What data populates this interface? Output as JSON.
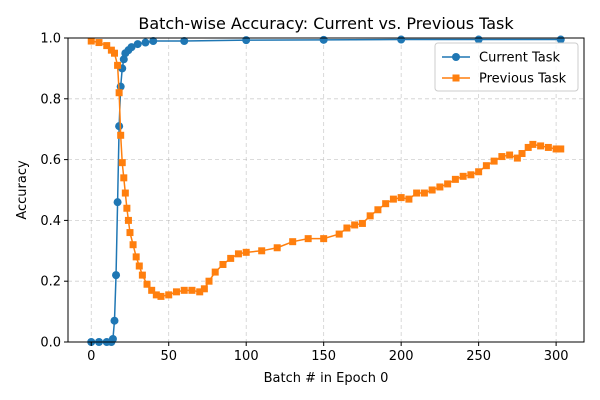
{
  "chart_data": {
    "type": "line",
    "title": "Batch-wise Accuracy: Current vs. Previous Task",
    "xlabel": "Batch # in Epoch 0",
    "ylabel": "Accuracy",
    "xlim": [
      -15,
      318
    ],
    "ylim": [
      0.0,
      1.0
    ],
    "xticks": [
      0,
      50,
      100,
      150,
      200,
      250,
      300
    ],
    "yticks": [
      0.0,
      0.2,
      0.4,
      0.6,
      0.8,
      1.0
    ],
    "xtick_labels": [
      "0",
      "50",
      "100",
      "150",
      "200",
      "250",
      "300"
    ],
    "ytick_labels": [
      "0.0",
      "0.2",
      "0.4",
      "0.6",
      "0.8",
      "1.0"
    ],
    "grid": true,
    "legend_position": "upper right",
    "series": [
      {
        "name": "Current Task",
        "color": "#1f77b4",
        "marker": "circle",
        "points": [
          [
            0,
            0.0
          ],
          [
            5,
            0.0
          ],
          [
            10,
            0.0
          ],
          [
            13,
            0.0
          ],
          [
            14,
            0.01
          ],
          [
            15,
            0.07
          ],
          [
            16,
            0.22
          ],
          [
            17,
            0.46
          ],
          [
            18,
            0.71
          ],
          [
            19,
            0.84
          ],
          [
            20,
            0.9
          ],
          [
            21,
            0.93
          ],
          [
            22,
            0.95
          ],
          [
            24,
            0.96
          ],
          [
            26,
            0.97
          ],
          [
            30,
            0.98
          ],
          [
            35,
            0.985
          ],
          [
            40,
            0.99
          ],
          [
            60,
            0.99
          ],
          [
            100,
            0.993
          ],
          [
            150,
            0.994
          ],
          [
            200,
            0.995
          ],
          [
            250,
            0.995
          ],
          [
            303,
            0.995
          ]
        ]
      },
      {
        "name": "Previous Task",
        "color": "#ff7f0e",
        "marker": "square",
        "points": [
          [
            0,
            0.99
          ],
          [
            5,
            0.985
          ],
          [
            10,
            0.975
          ],
          [
            13,
            0.96
          ],
          [
            15,
            0.95
          ],
          [
            17,
            0.91
          ],
          [
            18,
            0.82
          ],
          [
            19,
            0.68
          ],
          [
            20,
            0.59
          ],
          [
            21,
            0.54
          ],
          [
            22,
            0.49
          ],
          [
            23,
            0.44
          ],
          [
            24,
            0.4
          ],
          [
            25,
            0.36
          ],
          [
            27,
            0.32
          ],
          [
            29,
            0.28
          ],
          [
            31,
            0.25
          ],
          [
            33,
            0.22
          ],
          [
            36,
            0.19
          ],
          [
            39,
            0.17
          ],
          [
            42,
            0.155
          ],
          [
            45,
            0.15
          ],
          [
            50,
            0.155
          ],
          [
            55,
            0.165
          ],
          [
            60,
            0.17
          ],
          [
            65,
            0.17
          ],
          [
            70,
            0.165
          ],
          [
            73,
            0.175
          ],
          [
            76,
            0.2
          ],
          [
            80,
            0.23
          ],
          [
            85,
            0.255
          ],
          [
            90,
            0.275
          ],
          [
            95,
            0.29
          ],
          [
            100,
            0.295
          ],
          [
            110,
            0.3
          ],
          [
            120,
            0.31
          ],
          [
            130,
            0.33
          ],
          [
            140,
            0.34
          ],
          [
            150,
            0.34
          ],
          [
            160,
            0.355
          ],
          [
            165,
            0.375
          ],
          [
            170,
            0.385
          ],
          [
            175,
            0.39
          ],
          [
            180,
            0.415
          ],
          [
            185,
            0.435
          ],
          [
            190,
            0.455
          ],
          [
            195,
            0.47
          ],
          [
            200,
            0.475
          ],
          [
            205,
            0.47
          ],
          [
            210,
            0.49
          ],
          [
            215,
            0.49
          ],
          [
            220,
            0.5
          ],
          [
            225,
            0.51
          ],
          [
            230,
            0.52
          ],
          [
            235,
            0.535
          ],
          [
            240,
            0.545
          ],
          [
            245,
            0.55
          ],
          [
            250,
            0.56
          ],
          [
            255,
            0.58
          ],
          [
            260,
            0.595
          ],
          [
            265,
            0.61
          ],
          [
            270,
            0.615
          ],
          [
            275,
            0.605
          ],
          [
            278,
            0.62
          ],
          [
            282,
            0.64
          ],
          [
            285,
            0.65
          ],
          [
            290,
            0.645
          ],
          [
            295,
            0.64
          ],
          [
            300,
            0.635
          ],
          [
            303,
            0.635
          ]
        ]
      }
    ]
  }
}
